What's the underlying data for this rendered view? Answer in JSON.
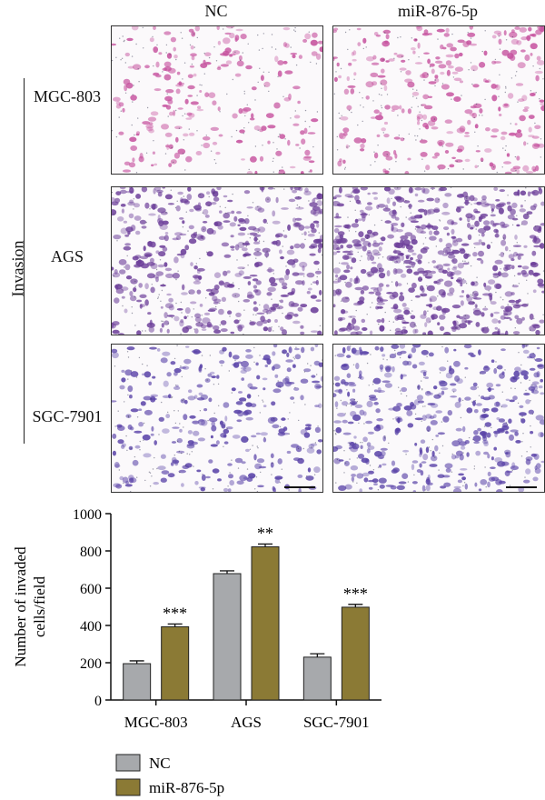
{
  "figure": {
    "columns": [
      "NC",
      "miR-876-5p"
    ],
    "group_label": "Invasion",
    "rows": [
      "MGC-803",
      "AGS",
      "SGC-7901"
    ]
  },
  "panels": {
    "MGC-803": {
      "density": 0.35,
      "tint": "#c6539f"
    },
    "AGS": {
      "density": 1.0,
      "tint": "#6d3f9a"
    },
    "SGC-7901": {
      "density": 0.6,
      "tint": "#5a43a8"
    }
  },
  "chart_data": {
    "type": "bar",
    "categories": [
      "MGC-803",
      "AGS",
      "SGC-7901"
    ],
    "series": [
      {
        "name": "NC",
        "values": [
          195,
          678,
          230
        ],
        "errors": [
          15,
          15,
          18
        ],
        "color": "#a7a9ac"
      },
      {
        "name": "miR-876-5p",
        "values": [
          393,
          822,
          498
        ],
        "errors": [
          15,
          15,
          15
        ],
        "color": "#8b7a35"
      }
    ],
    "significance": [
      "***",
      "**",
      "***"
    ],
    "ylabel": "Number of invaded cells/field",
    "ylabel_lines": [
      "Number of invaded",
      "cells/field"
    ],
    "ylim": [
      0,
      1000
    ],
    "yticks": [
      0,
      200,
      400,
      600,
      800,
      1000
    ],
    "legend": "bottom-left"
  }
}
